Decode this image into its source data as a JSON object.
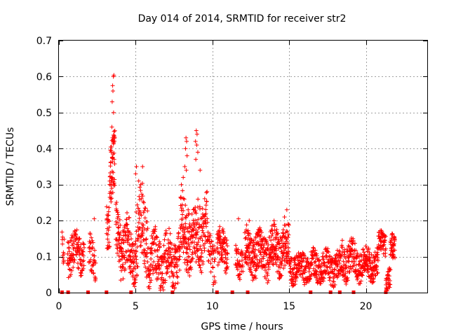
{
  "chart_data": {
    "type": "scatter",
    "title": "Day 014 of 2014, SRMTID for receiver str2",
    "xlabel": "GPS time / hours",
    "ylabel": "SRMTID / TECUs",
    "xlim": [
      0,
      24
    ],
    "ylim": [
      0,
      0.7
    ],
    "xticks": [
      0,
      5,
      10,
      15,
      20
    ],
    "xtick_labels": [
      "0",
      "5",
      "10",
      "15",
      "20"
    ],
    "yticks": [
      0,
      0.1,
      0.2,
      0.3,
      0.4,
      0.5,
      0.6,
      0.7
    ],
    "ytick_labels": [
      "0",
      "0.1",
      "0.2",
      "0.3",
      "0.4",
      "0.5",
      "0.6",
      "0.7"
    ],
    "grid": true,
    "marker": "plus",
    "color": "#ff0000",
    "series": [
      {
        "name": "SRMTID",
        "segments": [
          {
            "x0": 0.2,
            "x1": 0.35,
            "base": 0.1,
            "amp": 0.05,
            "n": 12
          },
          {
            "x0": 0.55,
            "x1": 1.65,
            "base": 0.11,
            "amp": 0.05,
            "n": 110
          },
          {
            "x0": 1.95,
            "x1": 2.4,
            "base": 0.1,
            "amp": 0.05,
            "n": 40
          },
          {
            "x0": 3.1,
            "x1": 3.3,
            "base": 0.2,
            "amp": 0.06,
            "n": 25
          },
          {
            "x0": 3.3,
            "x1": 3.65,
            "base": 0.34,
            "amp": 0.08,
            "n": 60
          },
          {
            "x0": 3.7,
            "x1": 4.0,
            "base": 0.16,
            "amp": 0.07,
            "n": 40
          },
          {
            "x0": 4.0,
            "x1": 4.6,
            "base": 0.13,
            "amp": 0.07,
            "n": 70
          },
          {
            "x0": 4.6,
            "x1": 5.0,
            "base": 0.1,
            "amp": 0.06,
            "n": 50
          },
          {
            "x0": 5.0,
            "x1": 5.8,
            "base": 0.17,
            "amp": 0.1,
            "n": 90
          },
          {
            "x0": 5.8,
            "x1": 7.9,
            "base": 0.09,
            "amp": 0.07,
            "n": 220
          },
          {
            "x0": 7.9,
            "x1": 8.5,
            "base": 0.18,
            "amp": 0.09,
            "n": 80
          },
          {
            "x0": 8.5,
            "x1": 9.0,
            "base": 0.13,
            "amp": 0.08,
            "n": 60
          },
          {
            "x0": 9.0,
            "x1": 9.7,
            "base": 0.18,
            "amp": 0.09,
            "n": 80
          },
          {
            "x0": 9.7,
            "x1": 10.2,
            "base": 0.1,
            "amp": 0.06,
            "n": 40
          },
          {
            "x0": 10.3,
            "x1": 11.0,
            "base": 0.12,
            "amp": 0.05,
            "n": 80
          },
          {
            "x0": 11.5,
            "x1": 12.0,
            "base": 0.09,
            "amp": 0.04,
            "n": 40
          },
          {
            "x0": 12.1,
            "x1": 14.0,
            "base": 0.11,
            "amp": 0.06,
            "n": 230
          },
          {
            "x0": 14.0,
            "x1": 15.0,
            "base": 0.12,
            "amp": 0.06,
            "n": 120
          },
          {
            "x0": 15.0,
            "x1": 16.5,
            "base": 0.07,
            "amp": 0.04,
            "n": 150
          },
          {
            "x0": 16.5,
            "x1": 18.4,
            "base": 0.07,
            "amp": 0.04,
            "n": 190
          },
          {
            "x0": 18.4,
            "x1": 19.3,
            "base": 0.09,
            "amp": 0.05,
            "n": 90
          },
          {
            "x0": 19.3,
            "x1": 20.8,
            "base": 0.08,
            "amp": 0.04,
            "n": 170
          },
          {
            "x0": 20.8,
            "x1": 21.3,
            "base": 0.14,
            "amp": 0.03,
            "n": 50
          },
          {
            "x0": 21.3,
            "x1": 21.6,
            "base": 0.04,
            "amp": 0.03,
            "n": 30
          },
          {
            "x0": 21.6,
            "x1": 21.9,
            "base": 0.12,
            "amp": 0.04,
            "n": 40
          }
        ],
        "spikes": [
          {
            "x": 3.55,
            "y": 0.6
          },
          {
            "x": 3.58,
            "y": 0.604
          },
          {
            "x": 3.5,
            "y": 0.575
          },
          {
            "x": 3.52,
            "y": 0.56
          },
          {
            "x": 3.47,
            "y": 0.53
          },
          {
            "x": 3.56,
            "y": 0.5
          },
          {
            "x": 3.45,
            "y": 0.46
          },
          {
            "x": 3.5,
            "y": 0.43
          },
          {
            "x": 3.4,
            "y": 0.39
          },
          {
            "x": 3.6,
            "y": 0.37
          },
          {
            "x": 8.28,
            "y": 0.43
          },
          {
            "x": 8.32,
            "y": 0.42
          },
          {
            "x": 8.25,
            "y": 0.4
          },
          {
            "x": 8.35,
            "y": 0.38
          },
          {
            "x": 8.2,
            "y": 0.35
          },
          {
            "x": 8.3,
            "y": 0.34
          },
          {
            "x": 8.95,
            "y": 0.45
          },
          {
            "x": 9.0,
            "y": 0.44
          },
          {
            "x": 8.9,
            "y": 0.42
          },
          {
            "x": 8.98,
            "y": 0.41
          },
          {
            "x": 9.05,
            "y": 0.39
          },
          {
            "x": 8.92,
            "y": 0.37
          },
          {
            "x": 5.05,
            "y": 0.35
          },
          {
            "x": 5.45,
            "y": 0.35
          },
          {
            "x": 5.0,
            "y": 0.33
          },
          {
            "x": 5.2,
            "y": 0.31
          },
          {
            "x": 8.1,
            "y": 0.32
          },
          {
            "x": 9.2,
            "y": 0.34
          },
          {
            "x": 14.85,
            "y": 0.23
          },
          {
            "x": 14.7,
            "y": 0.21
          },
          {
            "x": 12.4,
            "y": 0.2
          },
          {
            "x": 2.3,
            "y": 0.205
          },
          {
            "x": 11.7,
            "y": 0.205
          }
        ],
        "zero_markers": [
          0.2,
          0.6,
          1.9,
          3.1,
          4.7,
          7.4,
          10.3,
          11.3,
          12.3,
          16.4,
          17.7,
          18.3,
          19.2,
          21.3
        ]
      }
    ]
  }
}
